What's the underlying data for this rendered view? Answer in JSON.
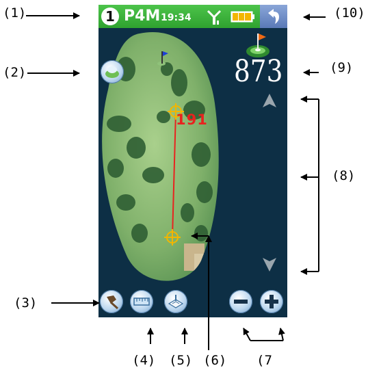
{
  "callouts": {
    "c1": "(1)",
    "c2": "(2)",
    "c3": "(3)",
    "c4": "(4)",
    "c5": "(5)",
    "c6": "(6)",
    "c7": "(7",
    "c8": "(8)",
    "c9": "(9)",
    "c10": "(10)"
  },
  "status_bar": {
    "hole_number": "1",
    "par": "P4M",
    "clock": "19:34",
    "signal_icon": "gps-signal-icon",
    "battery_icon": "battery-icon",
    "back_icon": "back-arrow-icon"
  },
  "map": {
    "distance_to_pin": "873",
    "shot_distance": "191",
    "pin_icon": "green-flag-icon",
    "scroll_up_icon": "scroll-up-arrow-icon",
    "scroll_down_icon": "scroll-down-arrow-icon",
    "target_icon": "crosshair-target-icon"
  },
  "toolbar": {
    "view_button_icon": "hole-view-icon",
    "mark_button_icon": "pin-marker-icon",
    "measure_button_icon": "ruler-icon",
    "scorecard_button_icon": "scorecard-icon",
    "zoom_out_icon": "minus-icon",
    "zoom_in_icon": "plus-icon"
  },
  "colors": {
    "status_green": "#3cb63b",
    "screen_background": "#0d2f45",
    "shot_line_red": "#e8231f",
    "crosshair_yellow": "#f2b600"
  }
}
